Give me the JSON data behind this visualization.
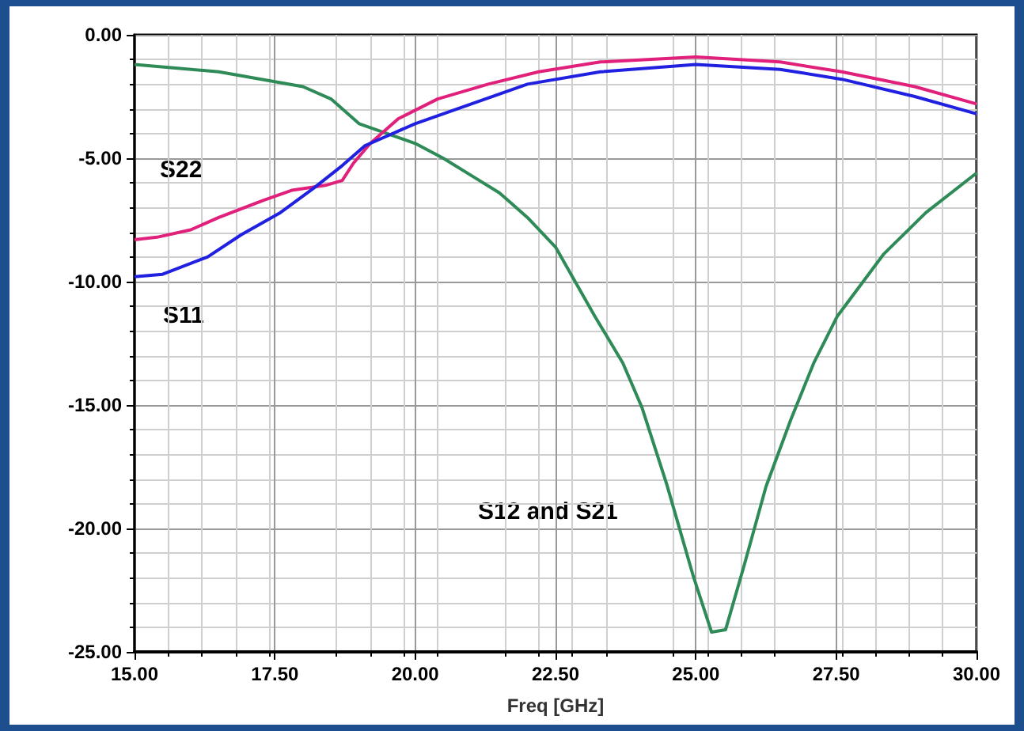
{
  "chart_data": {
    "type": "line",
    "xlabel": "Freq [GHz]",
    "xlim": [
      15,
      30
    ],
    "ylim": [
      -25,
      0
    ],
    "xticks": [
      {
        "value": 15,
        "label": "15.00"
      },
      {
        "value": 17.5,
        "label": "17.50"
      },
      {
        "value": 20,
        "label": "20.00"
      },
      {
        "value": 22.5,
        "label": "22.50"
      },
      {
        "value": 25,
        "label": "25.00"
      },
      {
        "value": 27.5,
        "label": "27.50"
      },
      {
        "value": 30,
        "label": "30.00"
      }
    ],
    "yticks": [
      {
        "value": -25,
        "label": "-25.00"
      },
      {
        "value": -20,
        "label": "-20.00"
      },
      {
        "value": -15,
        "label": "-15.00"
      },
      {
        "value": -10,
        "label": "-10.00"
      },
      {
        "value": -5,
        "label": "-5.00"
      },
      {
        "value": 0,
        "label": "0.00"
      }
    ],
    "grid": true,
    "marker": "none",
    "line_style": "solid",
    "series": [
      {
        "name": "S12 and S21",
        "color": "#2e8b57",
        "x": [
          15,
          16.5,
          17.5,
          18,
          18.5,
          19,
          19.5,
          20,
          20.5,
          21,
          21.5,
          22,
          22.5,
          23.2,
          23.7,
          24.04,
          24.48,
          24.95,
          25.28,
          25.53,
          25.86,
          26.25,
          26.69,
          27.1,
          27.52,
          28.34,
          29.1,
          30
        ],
        "values": [
          -1.2,
          -1.5,
          -1.9,
          -2.1,
          -2.6,
          -3.6,
          -4.0,
          -4.4,
          -5.0,
          -5.7,
          -6.4,
          -7.4,
          -8.6,
          -11.4,
          -13.3,
          -15.1,
          -18.2,
          -21.9,
          -24.2,
          -24.1,
          -21.5,
          -18.3,
          -15.6,
          -13.3,
          -11.4,
          -8.9,
          -7.2,
          -5.6
        ]
      },
      {
        "name": "S22",
        "color": "#e0207a",
        "x": [
          15,
          15.4,
          16,
          16.5,
          17.3,
          17.8,
          18.4,
          18.7,
          18.9,
          19.2,
          19.7,
          20.4,
          21.3,
          22.2,
          23.3,
          25,
          26.5,
          27.6,
          28.9,
          30
        ],
        "values": [
          -8.3,
          -8.2,
          -7.9,
          -7.4,
          -6.7,
          -6.3,
          -6.1,
          -5.9,
          -5.2,
          -4.4,
          -3.4,
          -2.6,
          -2.0,
          -1.5,
          -1.1,
          -0.9,
          -1.1,
          -1.5,
          -2.1,
          -2.8
        ]
      },
      {
        "name": "S11",
        "color": "#2020e0",
        "x": [
          15,
          15.5,
          16.3,
          16.9,
          17.6,
          18.2,
          18.7,
          19.1,
          19.4,
          20,
          21,
          22,
          23.3,
          25,
          26.5,
          27.6,
          28.9,
          30
        ],
        "values": [
          -9.8,
          -9.7,
          -9.0,
          -8.1,
          -7.2,
          -6.2,
          -5.3,
          -4.5,
          -4.2,
          -3.6,
          -2.8,
          -2.0,
          -1.5,
          -1.2,
          -1.4,
          -1.8,
          -2.5,
          -3.2
        ]
      }
    ]
  }
}
